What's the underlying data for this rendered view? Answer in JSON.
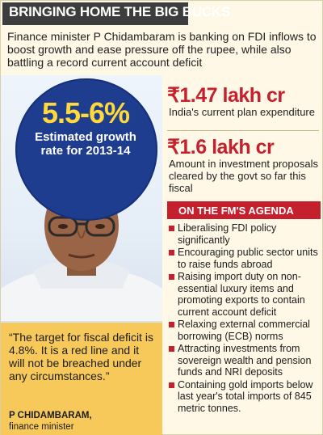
{
  "headline": "BRINGING HOME THE BIG BUCKS",
  "intro": "Finance minister P Chidambaram is banking on FDI inflows to boost growth and ease pressure off the rupee, while also battling a record current account deficit",
  "growth": {
    "value": "5.5-6%",
    "caption": "Estimated growth rate for 2013-14"
  },
  "stats": [
    {
      "value": "₹1.47 lakh cr",
      "label": "India's current plan expenditure"
    },
    {
      "value": "₹1.6 lakh cr",
      "label": "Amount in investment proposals cleared by the govt so far this fiscal"
    }
  ],
  "agenda": {
    "title": "ON THE FM'S AGENDA",
    "items": [
      "Liberalising FDI policy significantly",
      "Encouraging public sector units to raise funds abroad",
      "Raising import duty on non-essential luxury items and promoting exports to contain current account deficit",
      "Relaxing external commercial borrowing (ECB) norms",
      "Attracting investments from sovereign wealth and pension funds and NRI deposits",
      "Containing gold imports below last year's total imports of 845 metric tonnes."
    ]
  },
  "quote": {
    "text": "“The target for fiscal deficit is 4.8%. It is a red line and it will not be breached under any circumstances.”",
    "speaker": "P CHIDAMBARAM,",
    "role": "finance minister"
  },
  "colors": {
    "accent_red": "#c4202e",
    "bubble_blue": "#1f3d8f",
    "growth_yellow": "#ffd83a",
    "quote_bg": "#f7c95a",
    "header_bg": "#3d3d3d"
  }
}
